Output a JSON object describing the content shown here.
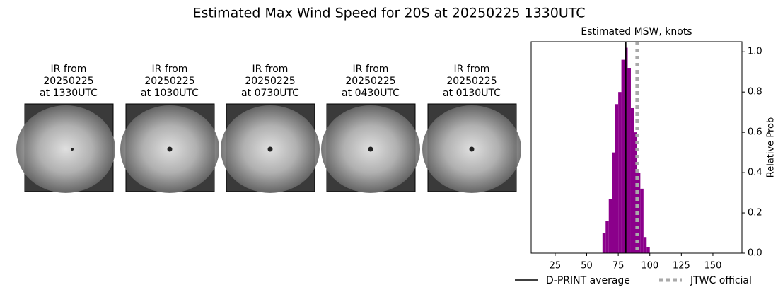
{
  "title": "Estimated Max Wind Speed for 20S at 20250225 1330UTC",
  "panels": [
    {
      "caption": [
        "IR from",
        "20250225",
        "at 1330UTC"
      ]
    },
    {
      "caption": [
        "IR from",
        "20250225",
        "at 1030UTC"
      ]
    },
    {
      "caption": [
        "IR from",
        "20250225",
        "at 0730UTC"
      ]
    },
    {
      "caption": [
        "IR from",
        "20250225",
        "at 0430UTC"
      ]
    },
    {
      "caption": [
        "IR from",
        "20250225",
        "at 0130UTC"
      ]
    }
  ],
  "chart_data": {
    "type": "histogram",
    "title": "Estimated MSW, knots",
    "y_label": "Relative Prob",
    "bins": [
      62.5,
      65,
      67.5,
      70,
      72.5,
      75,
      77.5,
      80,
      82.5,
      85,
      87.5,
      90,
      92.5,
      95,
      97.5,
      100
    ],
    "values": [
      0.1,
      0.16,
      0.27,
      0.5,
      0.74,
      0.8,
      0.96,
      1.02,
      0.92,
      0.72,
      0.6,
      0.4,
      0.32,
      0.08,
      0.03
    ],
    "color": "#8b008b",
    "xlim": [
      6,
      173
    ],
    "ylim": [
      0,
      1.05
    ],
    "xticks": [
      25,
      50,
      75,
      100,
      125,
      150
    ],
    "yticks": [
      {
        "value": 0,
        "label": "0.0"
      },
      {
        "value": 0.2,
        "label": "0.2"
      },
      {
        "value": 0.4,
        "label": "0.4"
      },
      {
        "value": 0.6,
        "label": "0.6"
      },
      {
        "value": 0.8,
        "label": "0.8"
      },
      {
        "value": 1.0,
        "label": "1.0"
      }
    ],
    "lines": [
      {
        "name": "D-PRINT average",
        "value": 81,
        "color": "#000000",
        "style": "solid"
      },
      {
        "name": "JTWC official",
        "value": 90,
        "color": "#a9a9a9",
        "style": "dotted"
      }
    ]
  }
}
